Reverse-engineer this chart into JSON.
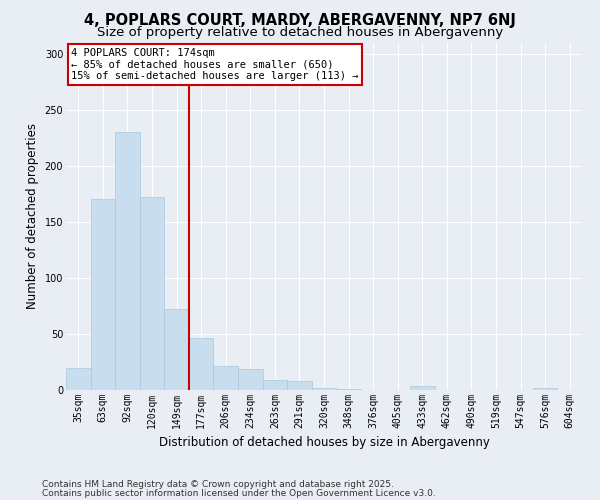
{
  "title_line1": "4, POPLARS COURT, MARDY, ABERGAVENNY, NP7 6NJ",
  "title_line2": "Size of property relative to detached houses in Abergavenny",
  "xlabel": "Distribution of detached houses by size in Abergavenny",
  "ylabel": "Number of detached properties",
  "categories": [
    "35sqm",
    "63sqm",
    "92sqm",
    "120sqm",
    "149sqm",
    "177sqm",
    "206sqm",
    "234sqm",
    "263sqm",
    "291sqm",
    "320sqm",
    "348sqm",
    "376sqm",
    "405sqm",
    "433sqm",
    "462sqm",
    "490sqm",
    "519sqm",
    "547sqm",
    "576sqm",
    "604sqm"
  ],
  "values": [
    20,
    170,
    230,
    172,
    72,
    46,
    21,
    19,
    9,
    8,
    2,
    1,
    0,
    0,
    4,
    0,
    0,
    0,
    0,
    2,
    0
  ],
  "bar_color": "#c8dded",
  "bar_edge_color": "#a8c8e0",
  "vline_index": 5,
  "vline_color": "#cc0000",
  "annotation_text": "4 POPLARS COURT: 174sqm\n← 85% of detached houses are smaller (650)\n15% of semi-detached houses are larger (113) →",
  "annotation_box_color": "#ffffff",
  "annotation_box_edge": "#cc0000",
  "footer_line1": "Contains HM Land Registry data © Crown copyright and database right 2025.",
  "footer_line2": "Contains public sector information licensed under the Open Government Licence v3.0.",
  "ylim": [
    0,
    310
  ],
  "yticks": [
    0,
    50,
    100,
    150,
    200,
    250,
    300
  ],
  "background_color": "#e8eef4",
  "plot_bg_color": "#e8eef4",
  "grid_color": "#ffffff",
  "title_fontsize": 10.5,
  "subtitle_fontsize": 9.5,
  "axis_label_fontsize": 8.5,
  "tick_fontsize": 7,
  "annotation_fontsize": 7.5,
  "footer_fontsize": 6.5
}
